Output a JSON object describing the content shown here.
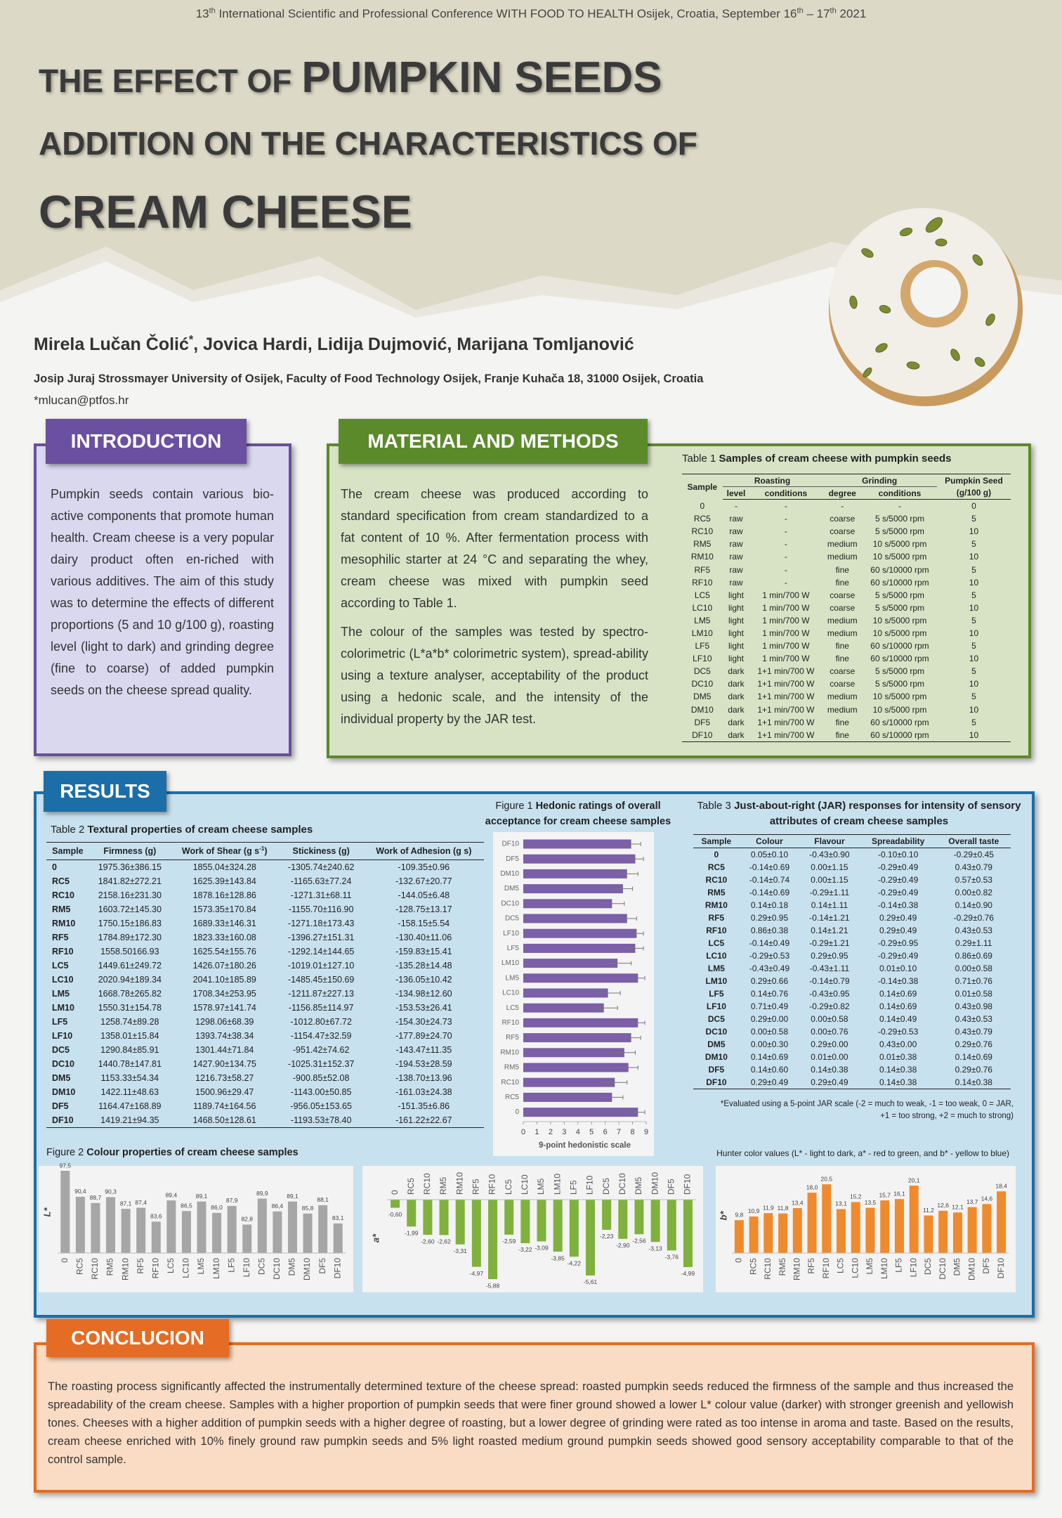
{
  "header": {
    "conference": [
      "13",
      "th",
      " International Scientific and Professional Conference WITH FOOD TO HEALTH Osijek, Croatia, September 16",
      "th",
      " – 17",
      "th",
      " 2021"
    ],
    "title": {
      "line1a": "THE EFFECT OF",
      "line1b": "PUMPKIN SEEDS",
      "line2": "ADDITION ON THE CHARACTERISTICS OF",
      "line3": "CREAM CHEESE"
    },
    "authors": [
      "Mirela Lučan Čolić",
      "*",
      ", Jovica Hardi, Lidija Dujmović, Marijana Tomljanović"
    ],
    "affiliation": "Josip Juraj Strossmayer University of Osijek, Faculty of Food Technology Osijek, Franje Kuhača 18, 31000 Osijek, Croatia",
    "email": "*mlucan@ptfos.hr"
  },
  "introduction": {
    "heading": "INTRODUCTION",
    "text": "Pumpkin seeds contain various bio-active components that promote human health. Cream cheese is a very popular dairy product often en-riched with various additives. The aim of this study was to determine the effects of different proportions (5 and 10 g/100 g), roasting level (light to dark) and grinding degree (fine to coarse) of added pumpkin seeds on the cheese spread quality."
  },
  "methods": {
    "heading": "MATERIAL AND METHODS",
    "paragraphs": [
      "The cream cheese was produced according to standard specification from cream standardized to a fat content of 10 %. After fermentation process with mesophilic starter at 24 °C and separating the whey, cream cheese was mixed with pumpkin seed according to Table 1.",
      "The colour of the samples was tested by spectro-colorimetric (L*a*b* colorimetric system), spread-ability using a texture analyser, acceptability of the product using a hedonic scale, and the intensity of the individual property by the JAR test."
    ]
  },
  "table1": {
    "label": "Table 1",
    "caption": "Samples of cream cheese with pumpkin seeds",
    "head_top": [
      "Sample",
      "Roasting",
      "Grinding",
      "Pumpkin Seed"
    ],
    "head_sub": [
      "level",
      "conditions",
      "degree",
      "conditions",
      "(g/100 g)"
    ],
    "rows": [
      [
        "0",
        "-",
        "-",
        "-",
        "-",
        "0"
      ],
      [
        "RC5",
        "raw",
        "-",
        "coarse",
        "5 s/5000 rpm",
        "5"
      ],
      [
        "RC10",
        "raw",
        "-",
        "coarse",
        "5 s/5000 rpm",
        "10"
      ],
      [
        "RM5",
        "raw",
        "-",
        "medium",
        "10 s/5000 rpm",
        "5"
      ],
      [
        "RM10",
        "raw",
        "-",
        "medium",
        "10 s/5000 rpm",
        "10"
      ],
      [
        "RF5",
        "raw",
        "-",
        "fine",
        "60 s/10000 rpm",
        "5"
      ],
      [
        "RF10",
        "raw",
        "-",
        "fine",
        "60 s/10000 rpm",
        "10"
      ],
      [
        "LC5",
        "light",
        "1 min/700 W",
        "coarse",
        "5 s/5000 rpm",
        "5"
      ],
      [
        "LC10",
        "light",
        "1 min/700 W",
        "coarse",
        "5 s/5000 rpm",
        "10"
      ],
      [
        "LM5",
        "light",
        "1 min/700 W",
        "medium",
        "10 s/5000 rpm",
        "5"
      ],
      [
        "LM10",
        "light",
        "1 min/700 W",
        "medium",
        "10 s/5000 rpm",
        "10"
      ],
      [
        "LF5",
        "light",
        "1 min/700 W",
        "fine",
        "60 s/10000 rpm",
        "5"
      ],
      [
        "LF10",
        "light",
        "1 min/700 W",
        "fine",
        "60 s/10000 rpm",
        "10"
      ],
      [
        "DC5",
        "dark",
        "1+1 min/700 W",
        "coarse",
        "5 s/5000 rpm",
        "5"
      ],
      [
        "DC10",
        "dark",
        "1+1 min/700 W",
        "coarse",
        "5 s/5000 rpm",
        "10"
      ],
      [
        "DM5",
        "dark",
        "1+1 min/700 W",
        "medium",
        "10 s/5000 rpm",
        "5"
      ],
      [
        "DM10",
        "dark",
        "1+1 min/700 W",
        "medium",
        "10 s/5000 rpm",
        "10"
      ],
      [
        "DF5",
        "dark",
        "1+1 min/700 W",
        "fine",
        "60 s/10000 rpm",
        "5"
      ],
      [
        "DF10",
        "dark",
        "1+1 min/700 W",
        "fine",
        "60 s/10000 rpm",
        "10"
      ]
    ]
  },
  "results": {
    "heading": "RESULTS"
  },
  "table2": {
    "label": "Table 2",
    "caption": "Textural properties of cream cheese samples",
    "columns": [
      "Sample",
      "Firmness (g)",
      [
        "Work of Shear (g s",
        "-1",
        ")"
      ],
      "Stickiness (g)",
      "Work of Adhesion (g s)"
    ],
    "rows": [
      [
        "0",
        "1975.36±386.15",
        "1855.04±324.28",
        "-1305.74±240.62",
        "-109.35±0.96"
      ],
      [
        "RC5",
        "1841.82±272.21",
        "1625.39±143.84",
        "-1165.63±77.24",
        "-132.67±20.77"
      ],
      [
        "RC10",
        "2158.16±231.30",
        "1878.16±128.86",
        "-1271.31±68.11",
        "-144.05±6.48"
      ],
      [
        "RM5",
        "1603.72±145.30",
        "1573.35±170.84",
        "-1155.70±116.90",
        "-128.75±13.17"
      ],
      [
        "RM10",
        "1750.15±186.83",
        "1689.33±146.31",
        "-1271.18±173.43",
        "-158.15±5.54"
      ],
      [
        "RF5",
        "1784.89±172.30",
        "1823.33±160.08",
        "-1396.27±151.31",
        "-130.40±11.06"
      ],
      [
        "RF10",
        "1558.50166.93",
        "1625.54±155.76",
        "-1292.14±144.65",
        "-159.83±15.41"
      ],
      [
        "LC5",
        "1449.61±249.72",
        "1426.07±180.26",
        "-1019.01±127.10",
        "-135.28±14.48"
      ],
      [
        "LC10",
        "2020.94±189.34",
        "2041.10±185.89",
        "-1485.45±150.69",
        "-136.05±10.42"
      ],
      [
        "LM5",
        "1668.78±265.82",
        "1708.34±253.95",
        "-1211.87±227.13",
        "-134.98±12.60"
      ],
      [
        "LM10",
        "1550.31±154.78",
        "1578.97±141.74",
        "-1156.85±114.97",
        "-153.53±26.41"
      ],
      [
        "LF5",
        "1258.74±89.28",
        "1298.06±68.39",
        "-1012.80±67.72",
        "-154.30±24.73"
      ],
      [
        "LF10",
        "1358.01±15.84",
        "1393.74±38.34",
        "-1154.47±32.59",
        "-177.89±24.70"
      ],
      [
        "DC5",
        "1290.84±85.91",
        "1301.44±71.84",
        "-951.42±74.62",
        "-143.47±11.35"
      ],
      [
        "DC10",
        "1440.78±147.81",
        "1427.90±134.75",
        "-1025.31±152.37",
        "-194.53±28.59"
      ],
      [
        "DM5",
        "1153.33±54.34",
        "1216.73±58.27",
        "-900.85±52.08",
        "-138.70±13.96"
      ],
      [
        "DM10",
        "1422.11±48.63",
        "1500.96±29.47",
        "-1143.00±50.85",
        "-161.03±24.38"
      ],
      [
        "DF5",
        "1164.47±168.89",
        "1189.74±164.56",
        "-956.05±153.65",
        "-151.35±6.86"
      ],
      [
        "DF10",
        "1419.21±94.35",
        "1468.50±128.61",
        "-1193.53±78.40",
        "-161.22±22.67"
      ]
    ]
  },
  "table3": {
    "label": "Table 3",
    "caption": "Just-about-right (JAR) responses for intensity of sensory attributes of cream cheese samples",
    "columns": [
      "Sample",
      "Colour",
      "Flavour",
      "Spreadability",
      "Overall taste"
    ],
    "rows": [
      [
        "0",
        "0.05±0.10",
        "-0.43±0.90",
        "-0.10±0.10",
        "-0.29±0.45"
      ],
      [
        "RC5",
        "-0.14±0.69",
        "0.00±1.15",
        "-0.29±0.49",
        "0.43±0.79"
      ],
      [
        "RC10",
        "-0.14±0.74",
        "0.00±1.15",
        "-0.29±0.49",
        "0.57±0.53"
      ],
      [
        "RM5",
        "-0.14±0.69",
        "-0.29±1.11",
        "-0.29±0.49",
        "0.00±0.82"
      ],
      [
        "RM10",
        "0.14±0.18",
        "0.14±1.11",
        "-0.14±0.38",
        "0.14±0.90"
      ],
      [
        "RF5",
        "0.29±0.95",
        "-0.14±1.21",
        "0.29±0.49",
        "-0.29±0.76"
      ],
      [
        "RF10",
        "0.86±0.38",
        "0.14±1.21",
        "0.29±0.49",
        "0.43±0.53"
      ],
      [
        "LC5",
        "-0.14±0.49",
        "-0.29±1.21",
        "-0.29±0.95",
        "0.29±1.11"
      ],
      [
        "LC10",
        "-0.29±0.53",
        "0.29±0.95",
        "-0.29±0.49",
        "0.86±0.69"
      ],
      [
        "LM5",
        "-0.43±0.49",
        "-0.43±1.11",
        "0.01±0.10",
        "0.00±0.58"
      ],
      [
        "LM10",
        "0.29±0.66",
        "-0.14±0.79",
        "-0.14±0.38",
        "0.71±0.76"
      ],
      [
        "LF5",
        "0.14±0.76",
        "-0.43±0.95",
        "0.14±0.69",
        "0.01±0.58"
      ],
      [
        "LF10",
        "0.71±0.49",
        "-0.29±0.82",
        "0.14±0.69",
        "0.43±0.98"
      ],
      [
        "DC5",
        "0.29±0.00",
        "0.00±0.58",
        "0.14±0.49",
        "0.43±0.53"
      ],
      [
        "DC10",
        "0.00±0.58",
        "0.00±0.76",
        "-0.29±0.53",
        "0.43±0.79"
      ],
      [
        "DM5",
        "0.00±0.30",
        "0.29±0.00",
        "0.43±0.00",
        "0.29±0.76"
      ],
      [
        "DM10",
        "0.14±0.69",
        "0.01±0.00",
        "0.01±0.38",
        "0.14±0.69"
      ],
      [
        "DF5",
        "0.14±0.60",
        "0.14±0.38",
        "0.14±0.38",
        "0.29±0.76"
      ],
      [
        "DF10",
        "0.29±0.49",
        "0.29±0.49",
        "0.14±0.38",
        "0.14±0.38"
      ]
    ],
    "note": [
      "*Evaluated using a 5-point JAR scale  (-2 = much to weak,  -1 = too weak,  0 = JAR,",
      "+1 = too strong, +2 = much to strong)"
    ]
  },
  "figure2": {
    "label": "Figure 2",
    "caption": "Colour properties of cream cheese samples",
    "note": "Hunter color values (L* - light to dark, a* - red to green, and b* - yellow to blue)"
  },
  "chart_data": [
    {
      "type": "bar",
      "orientation": "horizontal",
      "label": "Figure 1",
      "title": "Hedonic ratings of overall acceptance for cream cheese samples",
      "categories": [
        "DF10",
        "DF5",
        "DM10",
        "DM5",
        "DC10",
        "DC5",
        "LF10",
        "LF5",
        "LM10",
        "LM5",
        "LC10",
        "LC5",
        "RF10",
        "RF5",
        "RM10",
        "RM5",
        "RC10",
        "RC5",
        "0"
      ],
      "values": [
        7.9,
        8.2,
        7.6,
        7.3,
        6.5,
        7.6,
        8.3,
        8.2,
        6.9,
        8.4,
        6.2,
        5.9,
        8.4,
        7.9,
        7.4,
        7.7,
        6.7,
        6.5,
        8.4
      ],
      "errors": [
        0.7,
        0.6,
        0.8,
        0.7,
        0.9,
        0.7,
        0.5,
        0.6,
        1.0,
        0.5,
        0.9,
        1.0,
        0.5,
        0.7,
        0.8,
        0.7,
        0.9,
        0.8,
        0.5
      ],
      "xlim": [
        0,
        9
      ],
      "xticks": [
        0,
        1,
        2,
        3,
        4,
        5,
        6,
        7,
        8,
        9
      ],
      "xlabel": "9-point hedonistic scale",
      "color": "#7b5fa8"
    },
    {
      "type": "bar",
      "ylabel": "L*",
      "categories": [
        "0",
        "RC5",
        "RC10",
        "RM5",
        "RM10",
        "RF5",
        "RF10",
        "LC5",
        "LC10",
        "LM5",
        "LM10",
        "LF5",
        "LF10",
        "DC5",
        "DC10",
        "DM5",
        "DM10",
        "DF5",
        "DF10"
      ],
      "values": [
        97.5,
        90.4,
        88.7,
        90.3,
        87.1,
        87.4,
        83.6,
        89.4,
        86.5,
        89.1,
        86.0,
        87.9,
        82.8,
        89.9,
        86.4,
        89.1,
        85.8,
        88.1,
        83.1
      ],
      "value_labels": [
        "97,5",
        "90,4",
        "88,7",
        "90,3",
        "87,1",
        "87,4",
        "83,6",
        "89,4",
        "86,5",
        "89,1",
        "86,0",
        "87,9",
        "82,8",
        "89,9",
        "86,4",
        "89,1",
        "85,8",
        "88,1",
        "83,1"
      ],
      "ylim": [
        75,
        100
      ],
      "color": "#a6a6a6"
    },
    {
      "type": "bar",
      "ylabel": "a*",
      "categories": [
        "0",
        "RC5",
        "RC10",
        "RM5",
        "RM10",
        "RF5",
        "RF10",
        "LC5",
        "LC10",
        "LM5",
        "LM10",
        "LF5",
        "LF10",
        "DC5",
        "DC10",
        "DM5",
        "DM10",
        "DF5",
        "DF10"
      ],
      "values": [
        -0.6,
        -1.99,
        -2.6,
        -2.62,
        -3.31,
        -4.97,
        -5.88,
        -2.59,
        -3.22,
        -3.09,
        -3.85,
        -4.22,
        -5.61,
        -2.23,
        -2.9,
        -2.56,
        -3.13,
        -3.76,
        -4.99
      ],
      "value_labels": [
        "-0,60",
        "-1,99",
        "-2,60",
        "-2,62",
        "-3,31",
        "-4,97",
        "-5,88",
        "-2,59",
        "-3,22",
        "-3,09",
        "-3,85",
        "-4,22",
        "-5,61",
        "-2,23",
        "-2,90",
        "-2,56",
        "-3,13",
        "-3,76",
        "-4,99"
      ],
      "ylim": [
        -6.5,
        0
      ],
      "color": "#80b13c"
    },
    {
      "type": "bar",
      "ylabel": "b*",
      "categories": [
        "0",
        "RC5",
        "RC10",
        "RM5",
        "RM10",
        "RF5",
        "RF10",
        "LC5",
        "LC10",
        "LM5",
        "LM10",
        "LF5",
        "LF10",
        "DC5",
        "DC10",
        "DM5",
        "DM10",
        "DF5",
        "DF10"
      ],
      "values": [
        9.8,
        10.9,
        11.9,
        11.8,
        13.4,
        18.0,
        20.5,
        13.1,
        15.2,
        13.5,
        15.7,
        16.1,
        20.1,
        11.2,
        12.6,
        12.1,
        13.7,
        14.6,
        18.4
      ],
      "value_labels": [
        "9,8",
        "10,9",
        "11,9",
        "11,8",
        "13,4",
        "18,0",
        "20,5",
        "13,1",
        "15,2",
        "13,5",
        "15,7",
        "16,1",
        "20,1",
        "11,2",
        "12,6",
        "12,1",
        "13,7",
        "14,6",
        "18,4"
      ],
      "ylim": [
        0,
        22
      ],
      "color": "#ef8a2d"
    }
  ],
  "conclusion": {
    "heading": "CONCLUCION",
    "text": "The roasting process significantly affected the instrumentally determined texture of the cheese spread: roasted pumpkin seeds reduced the firmness of the sample and thus increased the spreadability of the cream cheese. Samples with a higher proportion of pumpkin seeds that were finer ground showed a lower L* colour value (darker) with stronger greenish and yellowish tones. Cheeses with a higher addition of pumpkin seeds with a higher degree of roasting, but a lower degree of grinding were rated as too intense in aroma and taste. Based on the results, cream cheese enriched with 10% finely ground raw pumpkin seeds and 5% light roasted medium ground pumpkin seeds showed good sensory acceptability comparable to that of the control sample."
  }
}
